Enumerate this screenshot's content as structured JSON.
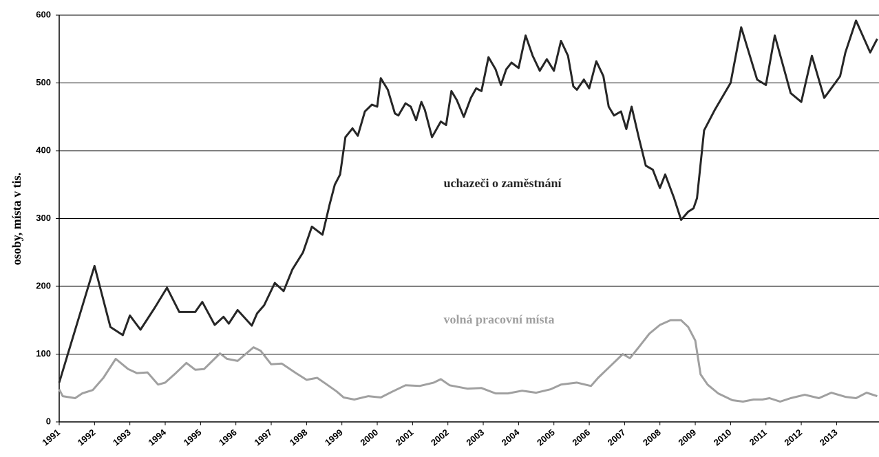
{
  "chart_data": {
    "type": "line",
    "ylabel": "osoby, místa v tis.",
    "annotations": [
      "uchazeči o zaměstnání",
      "volná pracovní místa"
    ],
    "xlim": [
      1991,
      2014.2
    ],
    "xticks": [
      1991,
      1992,
      1993,
      1994,
      1995,
      1996,
      1997,
      1998,
      1999,
      2000,
      2001,
      2002,
      2003,
      2004,
      2005,
      2006,
      2007,
      2008,
      2009,
      2010,
      2011,
      2012,
      2013
    ],
    "ylim": [
      0,
      600
    ],
    "yticks": [
      0,
      100,
      200,
      300,
      400,
      500,
      600
    ],
    "grid": true,
    "series": [
      {
        "color": "#262626",
        "x": [
          1991.0,
          1992.0,
          1992.45,
          1992.8,
          1993.0,
          1993.3,
          1993.7,
          1994.05,
          1994.4,
          1994.85,
          1995.05,
          1995.4,
          1995.65,
          1995.8,
          1996.05,
          1996.45,
          1996.6,
          1996.8,
          1997.1,
          1997.35,
          1997.6,
          1997.9,
          1998.15,
          1998.45,
          1998.65,
          1998.8,
          1998.95,
          1999.1,
          1999.3,
          1999.45,
          1999.65,
          1999.85,
          2000.0,
          2000.1,
          2000.3,
          2000.5,
          2000.6,
          2000.8,
          2000.95,
          2001.1,
          2001.25,
          2001.35,
          2001.55,
          2001.8,
          2001.95,
          2002.1,
          2002.25,
          2002.45,
          2002.65,
          2002.8,
          2002.95,
          2003.15,
          2003.35,
          2003.5,
          2003.65,
          2003.8,
          2004.0,
          2004.2,
          2004.4,
          2004.6,
          2004.8,
          2005.0,
          2005.2,
          2005.4,
          2005.55,
          2005.65,
          2005.85,
          2006.0,
          2006.2,
          2006.4,
          2006.55,
          2006.7,
          2006.9,
          2007.05,
          2007.2,
          2007.4,
          2007.6,
          2007.8,
          2008.0,
          2008.15,
          2008.4,
          2008.6,
          2008.8,
          2008.95,
          2009.05,
          2009.25,
          2009.55,
          2010.0,
          2010.3,
          2010.75,
          2011.0,
          2011.25,
          2011.7,
          2012.0,
          2012.3,
          2012.65,
          2012.75,
          2013.1,
          2013.25,
          2013.55,
          2013.95,
          2014.15
        ],
        "values": [
          58,
          230,
          140,
          128,
          157,
          136,
          168,
          198,
          162,
          162,
          177,
          143,
          155,
          145,
          165,
          142,
          160,
          172,
          205,
          193,
          225,
          250,
          288,
          276,
          320,
          350,
          365,
          420,
          433,
          422,
          458,
          468,
          465,
          507,
          490,
          455,
          452,
          470,
          465,
          445,
          472,
          460,
          420,
          443,
          438,
          488,
          475,
          450,
          478,
          492,
          488,
          538,
          520,
          497,
          520,
          530,
          522,
          570,
          540,
          518,
          535,
          518,
          562,
          540,
          495,
          490,
          505,
          492,
          532,
          510,
          465,
          452,
          458,
          432,
          465,
          420,
          378,
          372,
          345,
          365,
          330,
          298,
          310,
          315,
          330,
          430,
          460,
          500,
          582,
          505,
          497,
          570,
          485,
          472,
          540,
          478,
          485,
          510,
          545,
          592,
          545,
          565
        ]
      },
      {
        "color": "#a0a0a0",
        "x": [
          1991.0,
          1991.1,
          1991.45,
          1991.65,
          1991.95,
          1992.25,
          1992.6,
          1992.95,
          1993.2,
          1993.5,
          1993.8,
          1994.0,
          1994.3,
          1994.6,
          1994.85,
          1995.1,
          1995.55,
          1995.75,
          1996.05,
          1996.5,
          1996.7,
          1997.0,
          1997.3,
          1997.7,
          1998.0,
          1998.3,
          1998.55,
          1998.85,
          1999.05,
          1999.35,
          1999.75,
          2000.1,
          2000.4,
          2000.8,
          2001.2,
          2001.6,
          2001.8,
          2002.05,
          2002.55,
          2002.95,
          2003.35,
          2003.7,
          2004.1,
          2004.5,
          2004.9,
          2005.2,
          2005.65,
          2006.05,
          2006.25,
          2006.65,
          2006.95,
          2007.15,
          2007.4,
          2007.7,
          2008.0,
          2008.3,
          2008.6,
          2008.8,
          2009.0,
          2009.15,
          2009.35,
          2009.65,
          2010.05,
          2010.35,
          2010.65,
          2010.9,
          2011.1,
          2011.4,
          2011.7,
          2012.1,
          2012.5,
          2012.85,
          2013.25,
          2013.55,
          2013.85,
          2014.15
        ],
        "values": [
          48,
          38,
          35,
          42,
          47,
          65,
          93,
          78,
          72,
          73,
          55,
          58,
          72,
          87,
          77,
          78,
          101,
          93,
          90,
          110,
          105,
          85,
          86,
          72,
          62,
          65,
          56,
          45,
          36,
          33,
          38,
          36,
          44,
          54,
          53,
          58,
          63,
          54,
          49,
          50,
          42,
          42,
          46,
          43,
          48,
          55,
          58,
          53,
          65,
          85,
          100,
          94,
          110,
          130,
          143,
          150,
          150,
          140,
          120,
          70,
          55,
          42,
          32,
          30,
          33,
          33,
          35,
          30,
          35,
          40,
          35,
          43,
          37,
          35,
          43,
          38
        ]
      }
    ]
  }
}
